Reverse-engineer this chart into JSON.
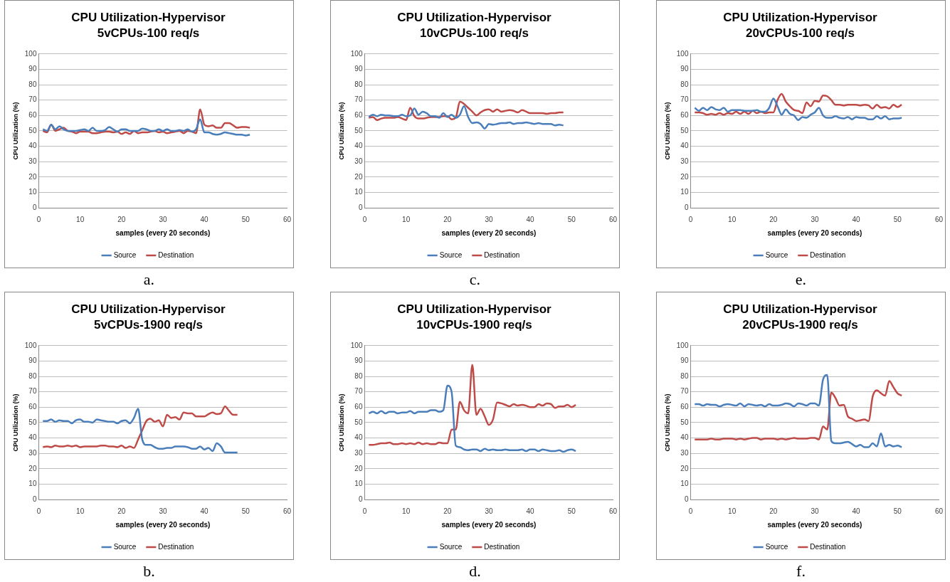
{
  "chart_data": [
    {
      "type": "line",
      "title": "CPU Utilization-Hypervisor",
      "subtitle": "5vCPUs-100 req/s",
      "xlabel": "samples (every 20 seconds)",
      "ylabel": "CPU Utilization (%)",
      "annotations": [
        "a."
      ],
      "x": [
        1,
        2,
        3,
        4,
        5,
        6,
        7,
        8,
        9,
        10,
        11,
        12,
        13,
        14,
        15,
        16,
        17,
        18,
        19,
        20,
        21,
        22,
        23,
        24,
        25,
        26,
        27,
        28,
        29,
        30,
        31,
        32,
        33,
        34,
        35,
        36,
        37,
        38,
        39,
        40,
        41,
        42,
        43,
        44,
        45,
        46,
        47,
        48,
        49,
        50,
        51
      ],
      "series": [
        {
          "name": "Source",
          "color": "#4a7ebb",
          "values": [
            51,
            50,
            54,
            51,
            53,
            51,
            50,
            50,
            50,
            50.5,
            51,
            50,
            52,
            50,
            50,
            50.5,
            52.5,
            51,
            49.5,
            51,
            51,
            50,
            50,
            50,
            51.5,
            51,
            50,
            50,
            51,
            50,
            51,
            50,
            50,
            50.5,
            50,
            51,
            49.5,
            51,
            57.5,
            49,
            49,
            48,
            47.5,
            48,
            49,
            48.5,
            48,
            47.5,
            47.5,
            47,
            47.5
          ]
        },
        {
          "name": "Destination",
          "color": "#be4b48",
          "values": [
            50,
            49,
            54,
            50,
            51,
            52,
            50,
            49.5,
            48.5,
            49.5,
            49.5,
            49.5,
            48.5,
            48.5,
            49,
            49.5,
            49.5,
            49,
            49.5,
            48,
            49,
            48,
            50,
            48.5,
            49,
            49,
            49.5,
            50,
            49,
            49.5,
            48.5,
            49,
            49.5,
            50,
            48.5,
            50,
            49.5,
            48.5,
            64,
            54,
            53,
            53.5,
            52,
            52,
            55,
            55,
            53.5,
            52,
            52.5,
            52.5,
            52
          ]
        }
      ],
      "xlim": [
        0,
        60
      ],
      "xticks": [
        0,
        10,
        20,
        30,
        40,
        50,
        60
      ],
      "ylim": [
        0,
        100
      ],
      "yticks": [
        0,
        10,
        20,
        30,
        40,
        50,
        60,
        70,
        80,
        90,
        100
      ],
      "grid": "y",
      "legend": "bottom",
      "marker": "none",
      "line_style": "solid"
    },
    {
      "type": "line",
      "title": "CPU Utilization-Hypervisor",
      "subtitle": "10vCPUs-100 req/s",
      "xlabel": "samples (every 20 seconds)",
      "ylabel": "CPU Utilization (%)",
      "annotations": [
        "c."
      ],
      "x": [
        1,
        2,
        3,
        4,
        5,
        6,
        7,
        8,
        9,
        10,
        11,
        12,
        13,
        14,
        15,
        16,
        17,
        18,
        19,
        20,
        21,
        22,
        23,
        24,
        25,
        26,
        27,
        28,
        29,
        30,
        31,
        32,
        33,
        34,
        35,
        36,
        37,
        38,
        39,
        40,
        41,
        42,
        43,
        44,
        45,
        46,
        47,
        48
      ],
      "series": [
        {
          "name": "Source",
          "color": "#4a7ebb",
          "values": [
            59,
            60.5,
            59.5,
            60.5,
            60,
            60,
            59.5,
            59.5,
            60.5,
            59.5,
            60,
            64.5,
            60.5,
            62.5,
            61.5,
            59.5,
            59.5,
            58.5,
            61.5,
            59,
            60.5,
            58.5,
            60.5,
            66,
            59,
            55,
            55.5,
            54.5,
            51.5,
            54.5,
            54,
            54.5,
            55,
            55,
            55.5,
            54.5,
            55,
            55,
            55.5,
            55,
            54.5,
            55,
            54.5,
            54.5,
            54.5,
            53.5,
            54,
            53.5
          ]
        },
        {
          "name": "Destination",
          "color": "#be4b48",
          "values": [
            58.5,
            59,
            57,
            58,
            58.5,
            58.5,
            58.5,
            59,
            58,
            57,
            65,
            59.5,
            58,
            58,
            58.5,
            59,
            59,
            59,
            59.5,
            59.5,
            57.5,
            58.5,
            69,
            67.5,
            65,
            62.5,
            60,
            62,
            63.5,
            64,
            62.5,
            64,
            62.5,
            63,
            63.5,
            63,
            62,
            63.5,
            62.5,
            61.5,
            61.5,
            61.5,
            61.5,
            61,
            61.5,
            61.5,
            62,
            62
          ]
        }
      ],
      "xlim": [
        0,
        60
      ],
      "xticks": [
        0,
        10,
        20,
        30,
        40,
        50,
        60
      ],
      "ylim": [
        0,
        100
      ],
      "yticks": [
        0,
        10,
        20,
        30,
        40,
        50,
        60,
        70,
        80,
        90,
        100
      ],
      "grid": "y",
      "legend": "bottom",
      "marker": "none",
      "line_style": "solid"
    },
    {
      "type": "line",
      "title": "CPU Utilization-Hypervisor",
      "subtitle": "20vCPUs-100 req/s",
      "xlabel": "samples (every 20 seconds)",
      "ylabel": "CPU Utilization (%)",
      "annotations": [
        "e."
      ],
      "x": [
        1,
        2,
        3,
        4,
        5,
        6,
        7,
        8,
        9,
        10,
        11,
        12,
        13,
        14,
        15,
        16,
        17,
        18,
        19,
        20,
        21,
        22,
        23,
        24,
        25,
        26,
        27,
        28,
        29,
        30,
        31,
        32,
        33,
        34,
        35,
        36,
        37,
        38,
        39,
        40,
        41,
        42,
        43,
        44,
        45,
        46,
        47,
        48,
        49,
        50,
        51
      ],
      "series": [
        {
          "name": "Source",
          "color": "#4a7ebb",
          "values": [
            65,
            63,
            65,
            63.5,
            65.5,
            64,
            63.5,
            65,
            62.5,
            63.5,
            63.5,
            63.5,
            63,
            63,
            63,
            63.5,
            62.5,
            62.5,
            65,
            71,
            66,
            60.5,
            64,
            61,
            60,
            57,
            59,
            58.5,
            60.5,
            62,
            65,
            60,
            58.5,
            58.5,
            59.5,
            58.5,
            58,
            59,
            57.5,
            59,
            58.5,
            58.5,
            57.5,
            57.5,
            59.5,
            58,
            59.5,
            57.5,
            58,
            58,
            58.5
          ]
        },
        {
          "name": "Destination",
          "color": "#be4b48",
          "values": [
            62,
            62,
            61.5,
            60.5,
            61,
            60.5,
            61.5,
            60.5,
            61.5,
            61,
            62.5,
            61,
            62.5,
            61,
            63,
            61.5,
            62.5,
            61.5,
            62,
            62,
            70,
            74,
            69,
            66,
            63.5,
            63,
            61.5,
            68.5,
            66,
            69.5,
            69,
            73,
            72.5,
            70,
            67,
            67,
            66.5,
            67,
            67,
            67,
            66.5,
            67,
            66.5,
            64.5,
            67,
            65,
            65.5,
            64.5,
            67,
            65.5,
            67
          ]
        }
      ],
      "xlim": [
        0,
        60
      ],
      "xticks": [
        0,
        10,
        20,
        30,
        40,
        50,
        60
      ],
      "ylim": [
        0,
        100
      ],
      "yticks": [
        0,
        10,
        20,
        30,
        40,
        50,
        60,
        70,
        80,
        90,
        100
      ],
      "grid": "y",
      "legend": "bottom",
      "marker": "none",
      "line_style": "solid"
    },
    {
      "type": "line",
      "title": "CPU Utilization-Hypervisor",
      "subtitle": "5vCPUs-1900 req/s",
      "xlabel": "samples (every 20 seconds)",
      "ylabel": "CPU Utilization (%)",
      "annotations": [
        "b."
      ],
      "x": [
        1,
        2,
        3,
        4,
        5,
        6,
        7,
        8,
        9,
        10,
        11,
        12,
        13,
        14,
        15,
        16,
        17,
        18,
        19,
        20,
        21,
        22,
        23,
        24,
        25,
        26,
        27,
        28,
        29,
        30,
        31,
        32,
        33,
        34,
        35,
        36,
        37,
        38,
        39,
        40,
        41,
        42,
        43,
        44,
        45,
        46,
        47,
        48
      ],
      "series": [
        {
          "name": "Source",
          "color": "#4a7ebb",
          "values": [
            51,
            51,
            52,
            50.5,
            51.5,
            51,
            51,
            49.5,
            51.5,
            52,
            50.5,
            50.5,
            50,
            52,
            51.5,
            51,
            50.5,
            50.5,
            49.5,
            51,
            51.5,
            49.5,
            53,
            59,
            39,
            35.5,
            35.5,
            34,
            33,
            33,
            33.5,
            33.5,
            34.5,
            34.5,
            34.5,
            34,
            33,
            33,
            34.5,
            32.5,
            33.5,
            31.5,
            36.5,
            34.5,
            30.5,
            30.5,
            30.5,
            30.5
          ]
        },
        {
          "name": "Destination",
          "color": "#be4b48",
          "values": [
            34,
            34.5,
            34,
            35,
            34.5,
            34.5,
            35,
            34.5,
            35,
            34,
            34.5,
            34.5,
            34.5,
            34.5,
            35,
            35,
            34.5,
            34.5,
            34,
            35,
            33.5,
            34.5,
            33.5,
            39,
            45,
            51,
            52.5,
            50.5,
            51.5,
            47.5,
            55,
            53,
            53.5,
            52,
            56.5,
            56,
            56,
            54,
            54,
            54,
            55.5,
            56.5,
            55.5,
            56,
            60.5,
            57.5,
            55,
            55
          ]
        }
      ],
      "xlim": [
        0,
        60
      ],
      "xticks": [
        0,
        10,
        20,
        30,
        40,
        50,
        60
      ],
      "ylim": [
        0,
        100
      ],
      "yticks": [
        0,
        10,
        20,
        30,
        40,
        50,
        60,
        70,
        80,
        90,
        100
      ],
      "grid": "y",
      "legend": "bottom",
      "marker": "none",
      "line_style": "solid"
    },
    {
      "type": "line",
      "title": "CPU Utilization-Hypervisor",
      "subtitle": "10vCPUs-1900 req/s",
      "xlabel": "samples (every 20 seconds)",
      "ylabel": "CPU Utilization (%)",
      "annotations": [
        "d."
      ],
      "x": [
        1,
        2,
        3,
        4,
        5,
        6,
        7,
        8,
        9,
        10,
        11,
        12,
        13,
        14,
        15,
        16,
        17,
        18,
        19,
        20,
        21,
        22,
        23,
        24,
        25,
        26,
        27,
        28,
        29,
        30,
        31,
        32,
        33,
        34,
        35,
        36,
        37,
        38,
        39,
        40,
        41,
        42,
        43,
        44,
        45,
        46,
        47,
        48,
        49,
        50,
        51
      ],
      "series": [
        {
          "name": "Source",
          "color": "#4a7ebb",
          "values": [
            56,
            57,
            56,
            57.5,
            56,
            57,
            57,
            56,
            56.5,
            56.5,
            57.5,
            56,
            57,
            57,
            57,
            58,
            58,
            57,
            58,
            74,
            70,
            35,
            34,
            32.5,
            32,
            32.5,
            32.5,
            31.5,
            33,
            32,
            32.5,
            32,
            32,
            32.5,
            32,
            32,
            32,
            32.5,
            31.5,
            32.5,
            32.5,
            31.5,
            32.5,
            32,
            31.5,
            31.5,
            32,
            31,
            32,
            32.5,
            31.5
          ]
        },
        {
          "name": "Destination",
          "color": "#be4b48",
          "values": [
            35.5,
            35.5,
            36,
            36.5,
            36.5,
            37,
            36,
            36,
            36.5,
            36,
            36.5,
            36,
            37,
            36,
            36.5,
            36,
            36,
            37,
            36.5,
            36.5,
            45.5,
            45.5,
            63.5,
            58,
            56,
            87.5,
            55,
            59,
            54,
            48.5,
            52,
            63,
            62.5,
            61.5,
            60.5,
            62,
            61,
            61.5,
            61,
            60,
            60,
            62,
            61,
            62.5,
            62,
            59.5,
            60.5,
            60.5,
            61.5,
            60,
            61.5
          ]
        }
      ],
      "xlim": [
        0,
        60
      ],
      "xticks": [
        0,
        10,
        20,
        30,
        40,
        50,
        60
      ],
      "ylim": [
        0,
        100
      ],
      "yticks": [
        0,
        10,
        20,
        30,
        40,
        50,
        60,
        70,
        80,
        90,
        100
      ],
      "grid": "y",
      "legend": "bottom",
      "marker": "none",
      "line_style": "solid"
    },
    {
      "type": "line",
      "title": "CPU Utilization-Hypervisor",
      "subtitle": "20vCPUs-1900 req/s",
      "xlabel": "samples (every 20 seconds)",
      "ylabel": "CPU Utilization (%)",
      "annotations": [
        "f."
      ],
      "x": [
        1,
        2,
        3,
        4,
        5,
        6,
        7,
        8,
        9,
        10,
        11,
        12,
        13,
        14,
        15,
        16,
        17,
        18,
        19,
        20,
        21,
        22,
        23,
        24,
        25,
        26,
        27,
        28,
        29,
        30,
        31,
        32,
        33,
        34,
        35,
        36,
        37,
        38,
        39,
        40,
        41,
        42,
        43,
        44,
        45,
        46,
        47,
        48,
        49,
        50,
        51
      ],
      "series": [
        {
          "name": "Source",
          "color": "#4a7ebb",
          "values": [
            62,
            62,
            61,
            62,
            61.5,
            61.5,
            60.5,
            61.5,
            62,
            61.5,
            61,
            62.5,
            60.5,
            62,
            61.5,
            61,
            61.5,
            60.5,
            62,
            61,
            61,
            61.5,
            62.5,
            62,
            60.5,
            62.5,
            62,
            61,
            62.5,
            62.5,
            61,
            78,
            81,
            38,
            36.5,
            36.5,
            37,
            37.5,
            36,
            34.5,
            35.5,
            34,
            34,
            36.5,
            34.5,
            43,
            34.5,
            35.5,
            34.5,
            35,
            34
          ]
        },
        {
          "name": "Destination",
          "color": "#be4b48",
          "values": [
            39,
            39,
            39,
            39,
            39.5,
            39,
            39,
            39.5,
            39.5,
            39.5,
            39,
            39.5,
            39,
            39.5,
            40,
            40,
            39,
            39.5,
            39.5,
            39.5,
            39,
            39.5,
            39,
            39.5,
            40,
            39.5,
            39.5,
            39.5,
            40,
            40,
            39,
            47.5,
            45.5,
            69.5,
            66,
            61,
            61.5,
            54,
            52.5,
            51,
            51.5,
            52,
            51,
            67,
            71,
            69,
            67.5,
            77,
            73,
            69,
            67.5
          ]
        }
      ],
      "xlim": [
        0,
        60
      ],
      "xticks": [
        0,
        10,
        20,
        30,
        40,
        50,
        60
      ],
      "ylim": [
        0,
        100
      ],
      "yticks": [
        0,
        10,
        20,
        30,
        40,
        50,
        60,
        70,
        80,
        90,
        100
      ],
      "grid": "y",
      "legend": "bottom",
      "marker": "none",
      "line_style": "solid"
    }
  ]
}
